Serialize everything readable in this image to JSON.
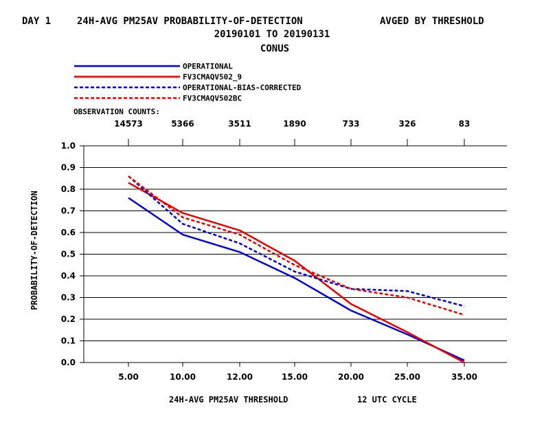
{
  "header": {
    "line1_left": "DAY 1",
    "line1_mid": "24H-AVG PM25AV PROBABILITY-OF-DETECTION",
    "line1_right": "AVGED BY THRESHOLD",
    "line2": "20190101 TO 20190131",
    "line3": "CONUS"
  },
  "obs_label": "OBSERVATION COUNTS:",
  "chart_data": {
    "type": "line",
    "title": "24H-AVG PM25AV PROBABILITY-OF-DETECTION",
    "subtitle": "20190101 TO 20190131",
    "region": "CONUS",
    "xlabel": "24H-AVG PM25AV THRESHOLD",
    "xlabel_suffix": "12 UTC CYCLE",
    "ylabel": "PROBABILITY-OF-DETECTION",
    "categories": [
      "5.00",
      "10.00",
      "12.00",
      "15.00",
      "20.00",
      "25.00",
      "35.00"
    ],
    "observation_counts": [
      "14573",
      "5366",
      "3511",
      "1890",
      "733",
      "326",
      "83"
    ],
    "ylim": [
      0,
      1.0
    ],
    "yticks": [
      "0.0",
      "0.1",
      "0.2",
      "0.3",
      "0.4",
      "0.5",
      "0.6",
      "0.7",
      "0.8",
      "0.9",
      "1.0"
    ],
    "grid": true,
    "legend_position": "top-left",
    "series": [
      {
        "name": "OPERATIONAL",
        "color": "#0000dd",
        "dash": "solid",
        "values": [
          0.76,
          0.59,
          0.51,
          0.39,
          0.24,
          0.13,
          0.01
        ]
      },
      {
        "name": "FV3CMAQV502_9",
        "color": "#ee0000",
        "dash": "solid",
        "values": [
          0.83,
          0.69,
          0.61,
          0.47,
          0.27,
          0.14,
          0.0
        ]
      },
      {
        "name": "OPERATIONAL-BIAS-CORRECTED",
        "color": "#0000dd",
        "dash": "dashed",
        "values": [
          0.86,
          0.64,
          0.55,
          0.42,
          0.34,
          0.33,
          0.26
        ]
      },
      {
        "name": "FV3CMAQV502BC",
        "color": "#ee0000",
        "dash": "dashed",
        "values": [
          0.86,
          0.67,
          0.59,
          0.45,
          0.34,
          0.3,
          0.22
        ]
      }
    ]
  }
}
